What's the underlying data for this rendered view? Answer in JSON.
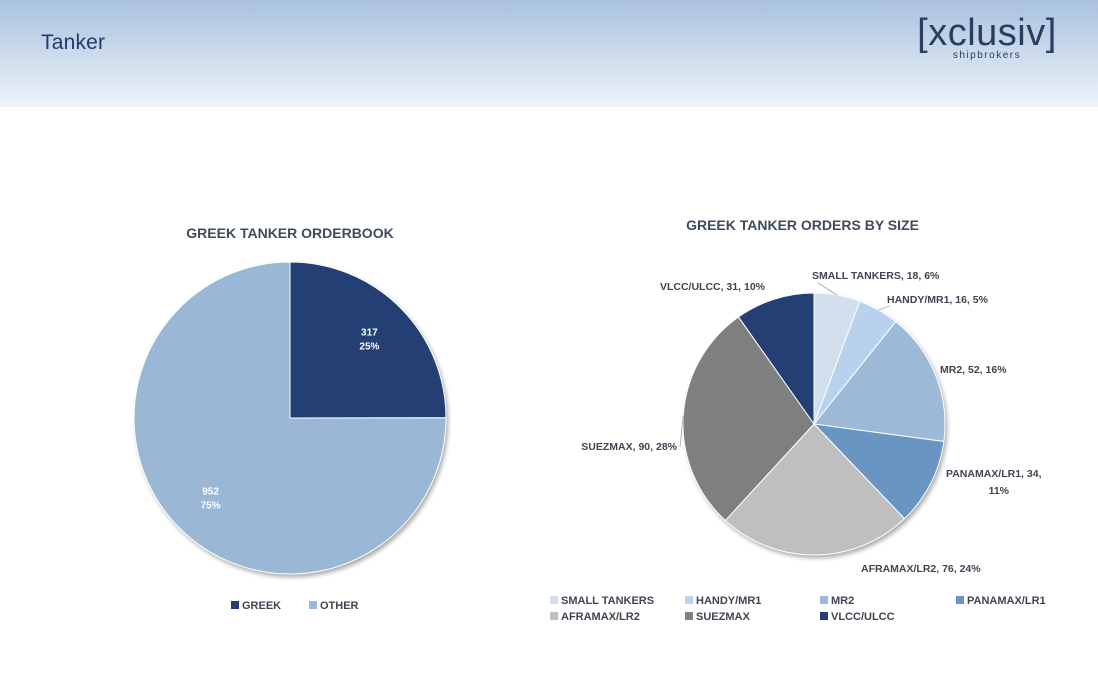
{
  "header": {
    "title": "Tanker",
    "logo_main": "[xclusiv]",
    "logo_sub": "shipbrokers"
  },
  "colors": {
    "header_gradient_top": "#a9c2dc",
    "title_text": "#1f3a6e",
    "greek": "#233f73",
    "other": "#9ab8d6"
  },
  "chart_data": [
    {
      "type": "pie",
      "title": "GREEK TANKER ORDERBOOK",
      "slices": [
        {
          "label": "GREEK",
          "value": 317,
          "percent": "25%",
          "color": "#233f73"
        },
        {
          "label": "OTHER",
          "value": 952,
          "percent": "75%",
          "color": "#9ab8d6"
        }
      ],
      "data_labels": [
        {
          "value": "317",
          "percent": "25%"
        },
        {
          "value": "952",
          "percent": "75%"
        }
      ],
      "legend": [
        "GREEK",
        "OTHER"
      ],
      "legend_position": "bottom"
    },
    {
      "type": "pie",
      "title": "GREEK TANKER ORDERS BY SIZE",
      "slices": [
        {
          "label": "SMALL TANKERS",
          "value": 18,
          "percent": "6%",
          "color": "#d2deec"
        },
        {
          "label": "HANDY/MR1",
          "value": 16,
          "percent": "5%",
          "color": "#b8d1ec"
        },
        {
          "label": "MR2",
          "value": 52,
          "percent": "16%",
          "color": "#9cb9d8"
        },
        {
          "label": "PANAMAX/LR1",
          "value": 34,
          "percent": "11%",
          "color": "#6895c1"
        },
        {
          "label": "AFRAMAX/LR2",
          "value": 76,
          "percent": "24%",
          "color": "#bfbfbf"
        },
        {
          "label": "SUEZMAX",
          "value": 90,
          "percent": "28%",
          "color": "#7f7f7f"
        },
        {
          "label": "VLCC/ULCC",
          "value": 31,
          "percent": "10%",
          "color": "#233f73"
        }
      ],
      "data_labels": [
        "SMALL TANKERS, 18, 6%",
        "HANDY/MR1, 16, 5%",
        "MR2, 52, 16%",
        "PANAMAX/LR1, 34,",
        "11%",
        "AFRAMAX/LR2, 76, 24%",
        "SUEZMAX, 90, 28%",
        "VLCC/ULCC, 31, 10%"
      ],
      "legend": [
        "SMALL TANKERS",
        "HANDY/MR1",
        "MR2",
        "PANAMAX/LR1",
        "AFRAMAX/LR2",
        "SUEZMAX",
        "VLCC/ULCC"
      ],
      "legend_position": "bottom"
    }
  ]
}
